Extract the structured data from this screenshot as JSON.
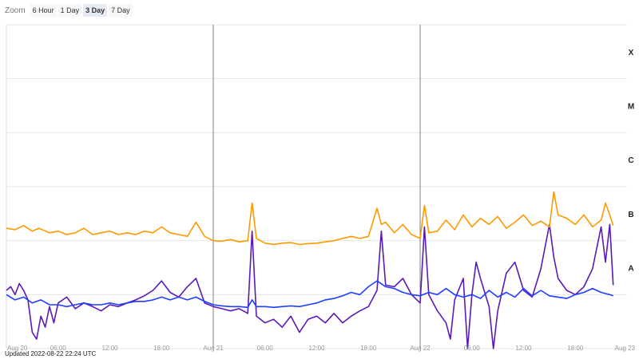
{
  "zoom": {
    "label": "Zoom",
    "options": [
      "6 Hour",
      "1 Day",
      "3 Day",
      "7 Day"
    ],
    "selected": "3 Day"
  },
  "updated": "Updated 2022-08-22 22:24 UTC",
  "colors": {
    "long_channel": "#ff9900",
    "long_channel_secondary": "#e85d1a",
    "short_channel": "#1f3fff",
    "short_channel_secondary": "#5a1ab5",
    "grid": "#e6e6e6",
    "day_line": "#808080",
    "text": "#333333"
  },
  "chart_data": {
    "type": "line",
    "title": "",
    "xlabel": "",
    "ylabel": "",
    "x_range": [
      "2022-08-20 00:00",
      "2022-08-23 00:00"
    ],
    "y_scale": "log",
    "y_range": [
      1e-09,
      0.001
    ],
    "flare_class_labels": [
      {
        "label": "A",
        "value": 1e-08
      },
      {
        "label": "B",
        "value": 1e-07
      },
      {
        "label": "C",
        "value": 1e-06
      },
      {
        "label": "M",
        "value": 1e-05
      },
      {
        "label": "X",
        "value": 0.0001
      }
    ],
    "x_tick_labels": [
      {
        "label": "Aug 20",
        "t": "2022-08-20 00:00"
      },
      {
        "label": "06:00",
        "t": "2022-08-20 06:00"
      },
      {
        "label": "12:00",
        "t": "2022-08-20 12:00"
      },
      {
        "label": "18:00",
        "t": "2022-08-20 18:00"
      },
      {
        "label": "Aug 21",
        "t": "2022-08-21 00:00"
      },
      {
        "label": "06:00",
        "t": "2022-08-21 06:00"
      },
      {
        "label": "12:00",
        "t": "2022-08-21 12:00"
      },
      {
        "label": "18:00",
        "t": "2022-08-21 18:00"
      },
      {
        "label": "Aug 22",
        "t": "2022-08-22 00:00"
      },
      {
        "label": "06:00",
        "t": "2022-08-22 06:00"
      },
      {
        "label": "12:00",
        "t": "2022-08-22 12:00"
      },
      {
        "label": "18:00",
        "t": "2022-08-22 18:00"
      },
      {
        "label": "Aug 23",
        "t": "2022-08-23 00:00"
      }
    ],
    "day_separators": [
      "2022-08-21 00:00",
      "2022-08-22 00:00"
    ],
    "grid": true,
    "legend": "none",
    "series": [
      {
        "color": "#ff9900",
        "x": [
          "2022-08-20 00:00",
          "2022-08-20 01:00",
          "2022-08-20 02:00",
          "2022-08-20 03:00",
          "2022-08-20 03:45",
          "2022-08-20 05:00",
          "2022-08-20 06:00",
          "2022-08-20 07:00",
          "2022-08-20 08:00",
          "2022-08-20 09:00",
          "2022-08-20 10:00",
          "2022-08-20 11:00",
          "2022-08-20 12:00",
          "2022-08-20 13:00",
          "2022-08-20 14:00",
          "2022-08-20 15:00",
          "2022-08-20 16:00",
          "2022-08-20 17:00",
          "2022-08-20 18:00",
          "2022-08-20 19:00",
          "2022-08-20 20:00",
          "2022-08-20 21:00",
          "2022-08-20 22:00",
          "2022-08-20 23:00",
          "2022-08-21 00:00",
          "2022-08-21 01:00",
          "2022-08-21 02:00",
          "2022-08-21 03:00",
          "2022-08-21 04:00",
          "2022-08-21 04:30",
          "2022-08-21 05:00",
          "2022-08-21 06:00",
          "2022-08-21 07:00",
          "2022-08-21 08:00",
          "2022-08-21 09:00",
          "2022-08-21 10:00",
          "2022-08-21 11:00",
          "2022-08-21 12:00",
          "2022-08-21 13:00",
          "2022-08-21 14:00",
          "2022-08-21 15:00",
          "2022-08-21 16:00",
          "2022-08-21 17:00",
          "2022-08-21 18:00",
          "2022-08-21 19:00",
          "2022-08-21 19:30",
          "2022-08-21 20:00",
          "2022-08-21 21:00",
          "2022-08-21 22:00",
          "2022-08-21 23:00",
          "2022-08-22 00:00",
          "2022-08-22 00:30",
          "2022-08-22 01:00",
          "2022-08-22 02:00",
          "2022-08-22 03:00",
          "2022-08-22 04:00",
          "2022-08-22 05:00",
          "2022-08-22 06:00",
          "2022-08-22 07:00",
          "2022-08-22 08:00",
          "2022-08-22 09:00",
          "2022-08-22 10:00",
          "2022-08-22 11:00",
          "2022-08-22 12:00",
          "2022-08-22 13:00",
          "2022-08-22 14:00",
          "2022-08-22 15:00",
          "2022-08-22 15:30",
          "2022-08-22 16:00",
          "2022-08-22 17:00",
          "2022-08-22 18:00",
          "2022-08-22 19:00",
          "2022-08-22 20:00",
          "2022-08-22 21:00",
          "2022-08-22 21:30",
          "2022-08-22 22:00",
          "2022-08-22 22:24"
        ],
        "y": [
          1.7e-07,
          1.6e-07,
          1.9e-07,
          1.5e-07,
          1.7e-07,
          1.4e-07,
          1.5e-07,
          1.3e-07,
          1.4e-07,
          1.7e-07,
          1.3e-07,
          1.4e-07,
          1.5e-07,
          1.3e-07,
          1.4e-07,
          1.3e-07,
          1.5e-07,
          1.4e-07,
          1.8e-07,
          1.4e-07,
          1.3e-07,
          1.2e-07,
          2.2e-07,
          1.2e-07,
          1e-07,
          9.8e-08,
          1.05e-07,
          9.5e-08,
          1e-07,
          5e-07,
          1.1e-07,
          9e-08,
          8.5e-08,
          9e-08,
          9.2e-08,
          8.5e-08,
          8.8e-08,
          9e-08,
          9.5e-08,
          1e-07,
          1.1e-07,
          1.2e-07,
          1.1e-07,
          1.2e-07,
          4e-07,
          2e-07,
          2.2e-07,
          1.4e-07,
          2e-07,
          1.3e-07,
          1.1e-07,
          4.5e-07,
          1.4e-07,
          1.5e-07,
          2.4e-07,
          1.6e-07,
          3e-07,
          1.8e-07,
          2.6e-07,
          2e-07,
          2.8e-07,
          1.7e-07,
          2.2e-07,
          3e-07,
          1.9e-07,
          2.3e-07,
          1.8e-07,
          8e-07,
          3e-07,
          2.6e-07,
          2e-07,
          3e-07,
          1.8e-07,
          2.4e-07,
          5e-07,
          3e-07,
          1.9e-07
        ]
      },
      {
        "color": "#1f3fff",
        "x": [
          "2022-08-20 00:00",
          "2022-08-20 01:00",
          "2022-08-20 02:00",
          "2022-08-20 03:00",
          "2022-08-20 04:00",
          "2022-08-20 05:00",
          "2022-08-20 06:00",
          "2022-08-20 07:00",
          "2022-08-20 08:00",
          "2022-08-20 09:00",
          "2022-08-20 10:00",
          "2022-08-20 11:00",
          "2022-08-20 12:00",
          "2022-08-20 13:00",
          "2022-08-20 14:00",
          "2022-08-20 15:00",
          "2022-08-20 16:00",
          "2022-08-20 17:00",
          "2022-08-20 18:00",
          "2022-08-20 19:00",
          "2022-08-20 20:00",
          "2022-08-20 21:00",
          "2022-08-20 22:00",
          "2022-08-20 23:00",
          "2022-08-21 00:00",
          "2022-08-21 01:00",
          "2022-08-21 02:00",
          "2022-08-21 03:00",
          "2022-08-21 04:00",
          "2022-08-21 04:30",
          "2022-08-21 05:00",
          "2022-08-21 06:00",
          "2022-08-21 07:00",
          "2022-08-21 08:00",
          "2022-08-21 09:00",
          "2022-08-21 10:00",
          "2022-08-21 11:00",
          "2022-08-21 12:00",
          "2022-08-21 13:00",
          "2022-08-21 14:00",
          "2022-08-21 15:00",
          "2022-08-21 16:00",
          "2022-08-21 17:00",
          "2022-08-21 18:00",
          "2022-08-21 19:00",
          "2022-08-21 20:00",
          "2022-08-21 21:00",
          "2022-08-21 22:00",
          "2022-08-21 23:00",
          "2022-08-22 00:00",
          "2022-08-22 01:00",
          "2022-08-22 02:00",
          "2022-08-22 03:00",
          "2022-08-22 04:00",
          "2022-08-22 05:00",
          "2022-08-22 06:00",
          "2022-08-22 07:00",
          "2022-08-22 08:00",
          "2022-08-22 09:00",
          "2022-08-22 10:00",
          "2022-08-22 11:00",
          "2022-08-22 12:00",
          "2022-08-22 13:00",
          "2022-08-22 14:00",
          "2022-08-22 15:00",
          "2022-08-22 16:00",
          "2022-08-22 17:00",
          "2022-08-22 18:00",
          "2022-08-22 19:00",
          "2022-08-22 20:00",
          "2022-08-22 21:00",
          "2022-08-22 22:00",
          "2022-08-22 22:24"
        ],
        "y": [
          1e-08,
          8e-09,
          9e-09,
          7e-09,
          8e-09,
          6.5e-09,
          6.5e-09,
          6e-09,
          6.5e-09,
          7e-09,
          6.5e-09,
          6.5e-09,
          7e-09,
          6.5e-09,
          7e-09,
          7.5e-09,
          7.5e-09,
          8e-09,
          9e-09,
          8e-09,
          9e-09,
          8e-09,
          9e-09,
          7.5e-09,
          6.5e-09,
          6.2e-09,
          6e-09,
          6e-09,
          5.8e-09,
          8e-09,
          6e-09,
          6e-09,
          5.8e-09,
          6e-09,
          6.2e-09,
          6e-09,
          6.5e-09,
          7e-09,
          8e-09,
          8.5e-09,
          9.5e-09,
          1.1e-08,
          1e-08,
          1.4e-08,
          1.8e-08,
          1.4e-08,
          1.3e-08,
          1.1e-08,
          1e-08,
          9.5e-09,
          1.1e-08,
          1e-08,
          1.3e-08,
          1e-08,
          9e-09,
          1e-08,
          8.5e-09,
          1.2e-08,
          9e-09,
          1.1e-08,
          9e-09,
          1.3e-08,
          9.5e-09,
          1.2e-08,
          9.5e-09,
          9e-09,
          8.5e-09,
          1e-08,
          1.1e-08,
          1.3e-08,
          1.1e-08,
          1e-08,
          9.5e-09
        ]
      }
    ],
    "secondary_series": [
      {
        "color": "#5a1ab5",
        "x": [
          "2022-08-20 00:00",
          "2022-08-20 00:30",
          "2022-08-20 01:00",
          "2022-08-20 01:30",
          "2022-08-20 02:00",
          "2022-08-20 02:30",
          "2022-08-20 03:00",
          "2022-08-20 03:30",
          "2022-08-20 04:00",
          "2022-08-20 04:30",
          "2022-08-20 05:00",
          "2022-08-20 05:30",
          "2022-08-20 06:00",
          "2022-08-20 07:00",
          "2022-08-20 08:00",
          "2022-08-20 09:00",
          "2022-08-20 10:00",
          "2022-08-20 11:00",
          "2022-08-20 12:00",
          "2022-08-20 13:00",
          "2022-08-20 14:00",
          "2022-08-20 15:00",
          "2022-08-20 16:00",
          "2022-08-20 17:00",
          "2022-08-20 18:00",
          "2022-08-20 19:00",
          "2022-08-20 20:00",
          "2022-08-20 21:00",
          "2022-08-20 22:00",
          "2022-08-20 23:00",
          "2022-08-21 00:00",
          "2022-08-21 01:00",
          "2022-08-21 02:00",
          "2022-08-21 03:00",
          "2022-08-21 04:00",
          "2022-08-21 04:30",
          "2022-08-21 05:00",
          "2022-08-21 06:00",
          "2022-08-21 07:00",
          "2022-08-21 08:00",
          "2022-08-21 09:00",
          "2022-08-21 10:00",
          "2022-08-21 11:00",
          "2022-08-21 12:00",
          "2022-08-21 13:00",
          "2022-08-21 14:00",
          "2022-08-21 15:00",
          "2022-08-21 16:00",
          "2022-08-21 17:00",
          "2022-08-21 18:00",
          "2022-08-21 19:00",
          "2022-08-21 19:30",
          "2022-08-21 20:00",
          "2022-08-21 21:00",
          "2022-08-21 22:00",
          "2022-08-21 23:00",
          "2022-08-22 00:00",
          "2022-08-22 00:30",
          "2022-08-22 01:00",
          "2022-08-22 02:00",
          "2022-08-22 03:00",
          "2022-08-22 03:30",
          "2022-08-22 04:00",
          "2022-08-22 05:00",
          "2022-08-22 05:30",
          "2022-08-22 06:00",
          "2022-08-22 06:30",
          "2022-08-22 07:00",
          "2022-08-22 08:00",
          "2022-08-22 08:30",
          "2022-08-22 09:00",
          "2022-08-22 10:00",
          "2022-08-22 11:00",
          "2022-08-22 12:00",
          "2022-08-22 13:00",
          "2022-08-22 14:00",
          "2022-08-22 15:00",
          "2022-08-22 15:30",
          "2022-08-22 16:00",
          "2022-08-22 17:00",
          "2022-08-22 18:00",
          "2022-08-22 19:00",
          "2022-08-22 20:00",
          "2022-08-22 21:00",
          "2022-08-22 21:30",
          "2022-08-22 22:00",
          "2022-08-22 22:24"
        ],
        "y": [
          1.2e-08,
          1.4e-08,
          1e-08,
          1.6e-08,
          1.2e-08,
          8e-09,
          2e-09,
          1.5e-09,
          4e-09,
          2.5e-09,
          6e-09,
          3e-09,
          7e-09,
          9e-09,
          5.5e-09,
          7e-09,
          6e-09,
          5e-09,
          6.5e-09,
          6e-09,
          7e-09,
          8e-09,
          9.5e-09,
          1.2e-08,
          1.8e-08,
          1.1e-08,
          9e-09,
          1.4e-08,
          2e-08,
          7e-09,
          6e-09,
          5.5e-09,
          5e-09,
          5.5e-09,
          4.5e-09,
          1.5e-07,
          4e-09,
          3e-09,
          3.5e-09,
          2.5e-09,
          4e-09,
          2e-09,
          3.5e-09,
          4e-09,
          3e-09,
          4.5e-09,
          3e-09,
          4e-09,
          5e-09,
          6e-09,
          1.2e-08,
          1.5e-07,
          1.5e-08,
          1.4e-08,
          2e-08,
          1e-08,
          7e-09,
          1.8e-07,
          1e-08,
          5e-09,
          3e-09,
          1.5e-09,
          8e-09,
          2e-08,
          1e-09,
          1e-08,
          4e-08,
          2e-08,
          6e-09,
          1e-09,
          5e-09,
          2.5e-08,
          4e-08,
          1.2e-08,
          9e-09,
          3e-08,
          2e-07,
          5e-08,
          2e-08,
          1.2e-08,
          1e-08,
          1.4e-08,
          3e-08,
          1.8e-07,
          4e-08,
          2e-07,
          1.5e-08
        ]
      }
    ]
  }
}
